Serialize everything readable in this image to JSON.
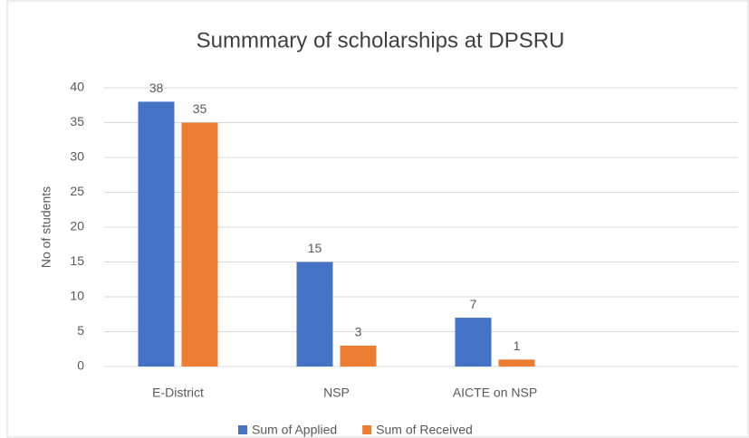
{
  "chart_data": {
    "type": "bar",
    "title": "Summmary of scholarships at DPSRU",
    "y_label": "No of students",
    "categories": [
      "E-District",
      "NSP",
      "AICTE on NSP",
      null
    ],
    "series": [
      {
        "name": "Sum of Applied",
        "color": "#4472c4",
        "values": [
          38,
          15,
          7,
          null
        ]
      },
      {
        "name": "Sum of Received",
        "color": "#ed7d31",
        "values": [
          35,
          3,
          1,
          null
        ]
      }
    ],
    "ylim": [
      0,
      40
    ],
    "yticks": [
      0,
      5,
      10,
      15,
      20,
      25,
      30,
      35,
      40
    ],
    "grid": true,
    "legend": "bottom"
  }
}
